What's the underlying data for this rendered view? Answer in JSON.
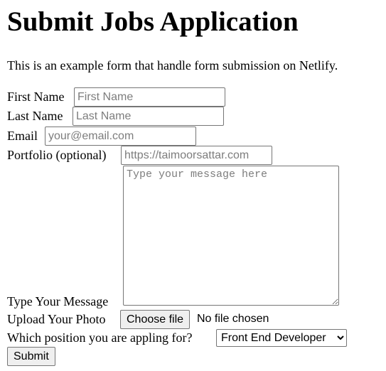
{
  "page": {
    "title": "Submit Jobs Application",
    "intro": "This is an example form that handle form submission on Netlify."
  },
  "form": {
    "first_name": {
      "label": "First Name",
      "placeholder": "First Name",
      "value": ""
    },
    "last_name": {
      "label": "Last Name",
      "placeholder": "Last Name",
      "value": ""
    },
    "email": {
      "label": "Email",
      "placeholder": "your@email.com",
      "value": ""
    },
    "portfolio": {
      "label": "Portfolio (optional)",
      "placeholder": "https://taimoorsattar.com",
      "value": ""
    },
    "message": {
      "label": "Type Your Message",
      "placeholder": "Type your message here",
      "value": ""
    },
    "photo": {
      "label": "Upload Your Photo",
      "button_label": "Choose file",
      "status": "No file chosen"
    },
    "position": {
      "label": "Which position you are appling for?",
      "selected": "Front End Developer"
    },
    "submit_label": "Submit"
  },
  "icons": {
    "select_arrow": "chevron-down-icon",
    "textarea_resize": "resize-grip-icon"
  }
}
